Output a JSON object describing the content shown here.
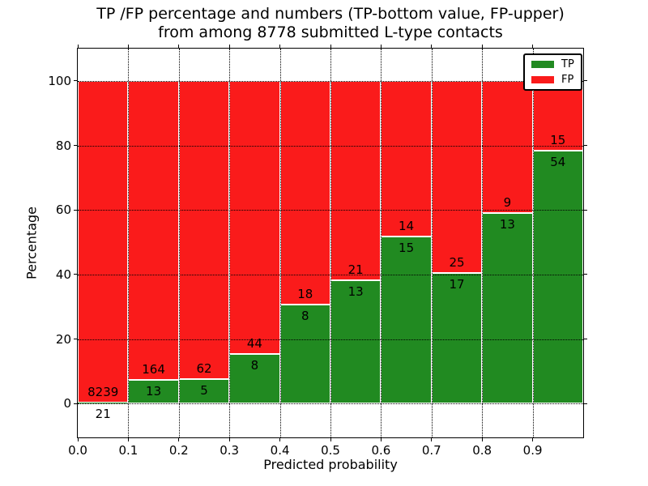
{
  "title": {
    "line1": "TP /FP percentage and numbers (TP-bottom value, FP-upper)",
    "line2": "from among 8778 submitted L-type contacts"
  },
  "legend": {
    "items": [
      {
        "label": "TP",
        "color": "#218a21"
      },
      {
        "label": "FP",
        "color": "#fa1b1b"
      }
    ]
  },
  "chart_data": {
    "type": "bar",
    "stacked": true,
    "normalized": "percent of bin total",
    "title": "TP /FP percentage and numbers (TP-bottom value, FP-upper) from among 8778 submitted L-type contacts",
    "xlabel": "Predicted probability",
    "ylabel": "Percentage",
    "xlim": [
      0.0,
      1.0
    ],
    "ylim": [
      -10.5,
      110
    ],
    "grid": true,
    "grid_style": "dotted",
    "legend_position": "upper right",
    "bin_edges": [
      0.0,
      0.1,
      0.2,
      0.3,
      0.4,
      0.5,
      0.6,
      0.7,
      0.8,
      0.9,
      1.0
    ],
    "categories": [
      "0.0-0.1",
      "0.1-0.2",
      "0.2-0.3",
      "0.3-0.4",
      "0.4-0.5",
      "0.5-0.6",
      "0.6-0.7",
      "0.7-0.8",
      "0.8-0.9",
      "0.9-1.0"
    ],
    "xtick_labels": [
      "0.0",
      "0.1",
      "0.2",
      "0.3",
      "0.4",
      "0.5",
      "0.6",
      "0.7",
      "0.8",
      "0.9"
    ],
    "ytick_values": [
      0,
      20,
      40,
      60,
      80,
      100
    ],
    "series": [
      {
        "name": "TP",
        "color": "#218a21",
        "counts": [
          21,
          13,
          5,
          8,
          8,
          13,
          15,
          17,
          13,
          54
        ]
      },
      {
        "name": "FP",
        "color": "#fa1b1b",
        "counts": [
          8239,
          164,
          62,
          44,
          18,
          21,
          14,
          25,
          9,
          15
        ]
      }
    ],
    "tp_percent_of_bin": [
      0.25,
      7.34,
      7.46,
      15.38,
      30.77,
      38.24,
      51.72,
      40.48,
      59.09,
      78.26
    ],
    "total_contacts": 8778
  }
}
